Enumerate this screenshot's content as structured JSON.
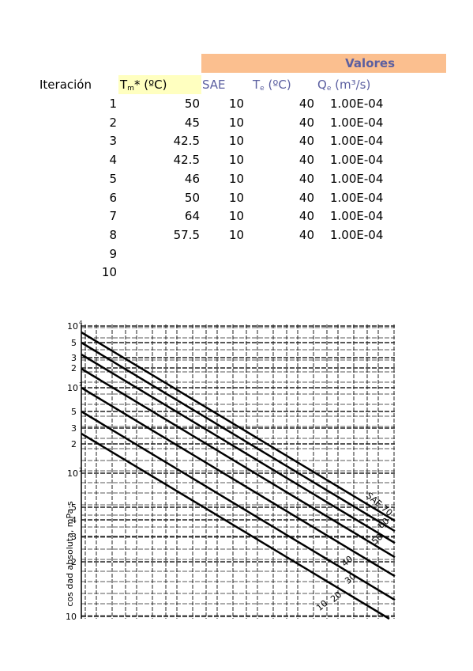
{
  "header": {
    "group": "Valores",
    "row_label": "Iteración",
    "columns": [
      {
        "main": "T",
        "sub": "m",
        "rest": "* (ºC)"
      },
      {
        "main": "SAE"
      },
      {
        "main": "T",
        "sub": "e",
        "rest": " (ºC)"
      },
      {
        "main": "Q",
        "sub": "e",
        "rest": " (m³/s)"
      }
    ]
  },
  "table": {
    "iterations": [
      1,
      2,
      3,
      4,
      5,
      6,
      7,
      8,
      9,
      10
    ],
    "rows": [
      [
        50,
        10,
        40,
        "1.00E-04"
      ],
      [
        45,
        10,
        40,
        "1.00E-04"
      ],
      [
        42.5,
        10,
        40,
        "1.00E-04"
      ],
      [
        42.5,
        10,
        40,
        "1.00E-04"
      ],
      [
        46,
        10,
        40,
        "1.00E-04"
      ],
      [
        50,
        10,
        40,
        "1.00E-04"
      ],
      [
        64,
        10,
        40,
        "1.00E-04"
      ],
      [
        57.5,
        10,
        40,
        "1.00E-04"
      ]
    ]
  },
  "figure": {
    "y_labels": [
      {
        "base": "10",
        "exp": "4"
      },
      "5",
      "3",
      "2",
      {
        "base": "10",
        "exp": "3"
      },
      "5",
      "3",
      "2",
      {
        "base": "10",
        "exp": "2"
      },
      "5",
      "4",
      "3",
      "2",
      "10"
    ],
    "curve_labels": [
      "SAE 70",
      "60",
      "50",
      "40",
      "30",
      "20",
      "10"
    ],
    "axis_label": "cos dad absoluta, mPa·s"
  }
}
